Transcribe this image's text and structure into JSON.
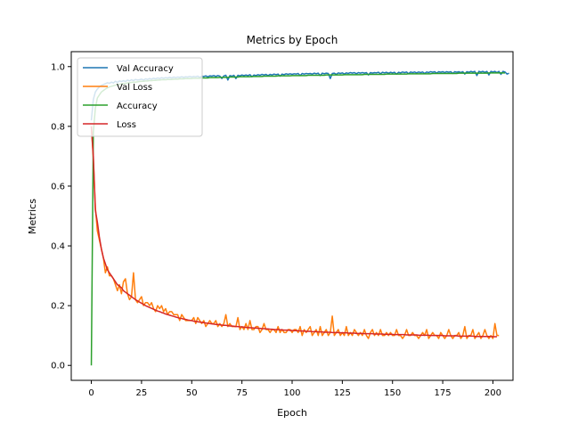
{
  "chart_data": {
    "type": "line",
    "title": "Metrics by Epoch",
    "xlabel": "Epoch",
    "ylabel": "Metrics",
    "xlim": [
      -10,
      210
    ],
    "ylim": [
      -0.05,
      1.05
    ],
    "xticks": [
      0,
      25,
      50,
      75,
      100,
      125,
      150,
      175,
      200
    ],
    "yticks": [
      0.0,
      0.2,
      0.4,
      0.6,
      0.8,
      1.0
    ],
    "grid": false,
    "legend_position": "top-left",
    "x_start": 0,
    "x_step": 1,
    "series": [
      {
        "name": "Val Accuracy",
        "color": "#1f77b4",
        "values": [
          0.82,
          0.89,
          0.915,
          0.925,
          0.932,
          0.937,
          0.94,
          0.943,
          0.946,
          0.944,
          0.948,
          0.945,
          0.951,
          0.947,
          0.952,
          0.95,
          0.953,
          0.95,
          0.955,
          0.952,
          0.956,
          0.953,
          0.957,
          0.955,
          0.956,
          0.958,
          0.955,
          0.959,
          0.957,
          0.96,
          0.958,
          0.961,
          0.959,
          0.962,
          0.96,
          0.963,
          0.961,
          0.963,
          0.962,
          0.964,
          0.962,
          0.965,
          0.963,
          0.965,
          0.964,
          0.966,
          0.964,
          0.966,
          0.965,
          0.967,
          0.965,
          0.967,
          0.966,
          0.968,
          0.964,
          0.968,
          0.967,
          0.969,
          0.966,
          0.969,
          0.968,
          0.97,
          0.967,
          0.97,
          0.968,
          0.96,
          0.969,
          0.971,
          0.955,
          0.97,
          0.968,
          0.971,
          0.96,
          0.971,
          0.969,
          0.972,
          0.97,
          0.972,
          0.97,
          0.973,
          0.966,
          0.972,
          0.97,
          0.973,
          0.971,
          0.974,
          0.972,
          0.974,
          0.97,
          0.974,
          0.972,
          0.975,
          0.973,
          0.975,
          0.968,
          0.975,
          0.973,
          0.976,
          0.974,
          0.976,
          0.974,
          0.976,
          0.975,
          0.977,
          0.97,
          0.977,
          0.975,
          0.977,
          0.976,
          0.977,
          0.975,
          0.978,
          0.976,
          0.978,
          0.97,
          0.978,
          0.976,
          0.978,
          0.977,
          0.96,
          0.977,
          0.978,
          0.974,
          0.979,
          0.977,
          0.979,
          0.975,
          0.979,
          0.977,
          0.98,
          0.978,
          0.98,
          0.976,
          0.98,
          0.978,
          0.98,
          0.978,
          0.98,
          0.972,
          0.98,
          0.978,
          0.98,
          0.979,
          0.981,
          0.976,
          0.981,
          0.979,
          0.981,
          0.978,
          0.981,
          0.979,
          0.981,
          0.975,
          0.981,
          0.979,
          0.982,
          0.98,
          0.982,
          0.976,
          0.982,
          0.98,
          0.982,
          0.979,
          0.982,
          0.98,
          0.982,
          0.977,
          0.982,
          0.98,
          0.983,
          0.981,
          0.983,
          0.978,
          0.983,
          0.981,
          0.983,
          0.98,
          0.983,
          0.981,
          0.983,
          0.977,
          0.983,
          0.981,
          0.983,
          0.98,
          0.983,
          0.975,
          0.983,
          0.981,
          0.984,
          0.982,
          0.984,
          0.97,
          0.984,
          0.982,
          0.984,
          0.981,
          0.984,
          0.972,
          0.984,
          0.982,
          0.984,
          0.98,
          0.984,
          0.974,
          0.984,
          0.982,
          0.975,
          0.978
        ]
      },
      {
        "name": "Val Loss",
        "color": "#ff7f0e",
        "values": [
          0.8,
          0.69,
          0.53,
          0.45,
          0.42,
          0.39,
          0.36,
          0.31,
          0.33,
          0.3,
          0.3,
          0.29,
          0.27,
          0.25,
          0.27,
          0.24,
          0.28,
          0.29,
          0.24,
          0.22,
          0.23,
          0.31,
          0.22,
          0.21,
          0.22,
          0.23,
          0.2,
          0.21,
          0.21,
          0.2,
          0.21,
          0.19,
          0.18,
          0.2,
          0.19,
          0.2,
          0.18,
          0.19,
          0.17,
          0.18,
          0.18,
          0.17,
          0.17,
          0.17,
          0.15,
          0.17,
          0.16,
          0.15,
          0.15,
          0.15,
          0.15,
          0.16,
          0.14,
          0.16,
          0.15,
          0.14,
          0.15,
          0.13,
          0.14,
          0.15,
          0.14,
          0.14,
          0.15,
          0.13,
          0.14,
          0.13,
          0.14,
          0.17,
          0.13,
          0.14,
          0.13,
          0.13,
          0.13,
          0.16,
          0.12,
          0.13,
          0.12,
          0.14,
          0.12,
          0.15,
          0.12,
          0.12,
          0.13,
          0.13,
          0.11,
          0.12,
          0.14,
          0.12,
          0.12,
          0.11,
          0.12,
          0.12,
          0.11,
          0.13,
          0.11,
          0.12,
          0.11,
          0.11,
          0.12,
          0.12,
          0.11,
          0.12,
          0.12,
          0.11,
          0.13,
          0.1,
          0.12,
          0.11,
          0.12,
          0.13,
          0.1,
          0.11,
          0.12,
          0.1,
          0.13,
          0.1,
          0.11,
          0.12,
          0.1,
          0.11,
          0.165,
          0.1,
          0.11,
          0.12,
          0.1,
          0.11,
          0.1,
          0.13,
          0.1,
          0.11,
          0.1,
          0.12,
          0.11,
          0.1,
          0.11,
          0.1,
          0.12,
          0.1,
          0.09,
          0.11,
          0.12,
          0.1,
          0.11,
          0.1,
          0.12,
          0.1,
          0.1,
          0.11,
          0.1,
          0.11,
          0.1,
          0.1,
          0.12,
          0.1,
          0.1,
          0.09,
          0.1,
          0.12,
          0.1,
          0.1,
          0.11,
          0.1,
          0.1,
          0.09,
          0.1,
          0.11,
          0.1,
          0.12,
          0.09,
          0.1,
          0.11,
          0.1,
          0.1,
          0.09,
          0.11,
          0.1,
          0.09,
          0.1,
          0.12,
          0.1,
          0.09,
          0.1,
          0.1,
          0.11,
          0.09,
          0.1,
          0.13,
          0.09,
          0.1,
          0.1,
          0.12,
          0.09,
          0.1,
          0.11,
          0.09,
          0.1,
          0.12,
          0.1,
          0.09,
          0.1,
          0.09,
          0.14,
          0.1,
          0.1
        ]
      },
      {
        "name": "Accuracy",
        "color": "#2ca02c",
        "values": [
          0.0,
          0.78,
          0.86,
          0.895,
          0.905,
          0.915,
          0.92,
          0.925,
          0.929,
          0.932,
          0.934,
          0.936,
          0.938,
          0.939,
          0.941,
          0.942,
          0.943,
          0.944,
          0.945,
          0.946,
          0.947,
          0.948,
          0.948,
          0.949,
          0.95,
          0.951,
          0.951,
          0.952,
          0.952,
          0.953,
          0.953,
          0.954,
          0.954,
          0.955,
          0.955,
          0.956,
          0.956,
          0.956,
          0.957,
          0.957,
          0.957,
          0.958,
          0.958,
          0.958,
          0.959,
          0.959,
          0.959,
          0.96,
          0.96,
          0.96,
          0.96,
          0.961,
          0.961,
          0.961,
          0.961,
          0.962,
          0.962,
          0.962,
          0.962,
          0.963,
          0.963,
          0.963,
          0.963,
          0.963,
          0.964,
          0.964,
          0.964,
          0.964,
          0.964,
          0.965,
          0.965,
          0.965,
          0.965,
          0.965,
          0.966,
          0.966,
          0.966,
          0.966,
          0.966,
          0.966,
          0.967,
          0.967,
          0.967,
          0.967,
          0.967,
          0.967,
          0.968,
          0.968,
          0.968,
          0.968,
          0.968,
          0.968,
          0.968,
          0.969,
          0.969,
          0.969,
          0.969,
          0.969,
          0.969,
          0.969,
          0.97,
          0.97,
          0.97,
          0.97,
          0.97,
          0.97,
          0.97,
          0.97,
          0.971,
          0.971,
          0.971,
          0.971,
          0.971,
          0.971,
          0.971,
          0.971,
          0.971,
          0.972,
          0.972,
          0.972,
          0.972,
          0.972,
          0.972,
          0.972,
          0.972,
          0.972,
          0.973,
          0.973,
          0.973,
          0.973,
          0.973,
          0.973,
          0.973,
          0.973,
          0.973,
          0.973,
          0.974,
          0.974,
          0.974,
          0.974,
          0.974,
          0.974,
          0.974,
          0.974,
          0.974,
          0.974,
          0.974,
          0.975,
          0.975,
          0.975,
          0.975,
          0.975,
          0.975,
          0.975,
          0.975,
          0.975,
          0.975,
          0.975,
          0.976,
          0.976,
          0.976,
          0.976,
          0.976,
          0.976,
          0.976,
          0.976,
          0.976,
          0.976,
          0.976,
          0.976,
          0.977,
          0.977,
          0.977,
          0.977,
          0.977,
          0.977,
          0.977,
          0.977,
          0.977,
          0.977,
          0.977,
          0.977,
          0.977,
          0.978,
          0.978,
          0.978,
          0.978,
          0.978,
          0.978,
          0.978,
          0.978,
          0.978,
          0.978,
          0.978,
          0.978,
          0.978,
          0.978,
          0.978,
          0.979,
          0.979,
          0.979,
          0.979,
          0.979,
          0.979,
          0.979,
          0.979,
          0.979
        ]
      },
      {
        "name": "Loss",
        "color": "#d62728",
        "values": [
          0.8,
          0.7,
          0.52,
          0.48,
          0.43,
          0.39,
          0.36,
          0.34,
          0.32,
          0.31,
          0.3,
          0.29,
          0.28,
          0.27,
          0.265,
          0.26,
          0.25,
          0.245,
          0.24,
          0.235,
          0.23,
          0.225,
          0.22,
          0.216,
          0.212,
          0.208,
          0.204,
          0.2,
          0.197,
          0.194,
          0.191,
          0.188,
          0.185,
          0.182,
          0.18,
          0.177,
          0.175,
          0.172,
          0.17,
          0.168,
          0.166,
          0.164,
          0.162,
          0.16,
          0.158,
          0.157,
          0.155,
          0.154,
          0.152,
          0.151,
          0.15,
          0.148,
          0.147,
          0.146,
          0.145,
          0.144,
          0.143,
          0.142,
          0.141,
          0.14,
          0.139,
          0.138,
          0.137,
          0.137,
          0.136,
          0.135,
          0.134,
          0.134,
          0.133,
          0.132,
          0.132,
          0.131,
          0.13,
          0.13,
          0.129,
          0.129,
          0.128,
          0.127,
          0.127,
          0.126,
          0.126,
          0.125,
          0.125,
          0.124,
          0.124,
          0.123,
          0.123,
          0.122,
          0.122,
          0.121,
          0.121,
          0.12,
          0.12,
          0.12,
          0.119,
          0.119,
          0.118,
          0.118,
          0.118,
          0.117,
          0.117,
          0.116,
          0.116,
          0.116,
          0.115,
          0.115,
          0.115,
          0.114,
          0.114,
          0.114,
          0.113,
          0.113,
          0.113,
          0.112,
          0.112,
          0.112,
          0.111,
          0.111,
          0.111,
          0.111,
          0.11,
          0.11,
          0.11,
          0.11,
          0.109,
          0.109,
          0.109,
          0.109,
          0.108,
          0.108,
          0.108,
          0.108,
          0.107,
          0.107,
          0.107,
          0.107,
          0.106,
          0.106,
          0.106,
          0.106,
          0.106,
          0.105,
          0.105,
          0.105,
          0.105,
          0.105,
          0.104,
          0.104,
          0.104,
          0.104,
          0.104,
          0.103,
          0.103,
          0.103,
          0.103,
          0.103,
          0.103,
          0.102,
          0.102,
          0.102,
          0.102,
          0.102,
          0.102,
          0.101,
          0.101,
          0.101,
          0.101,
          0.101,
          0.101,
          0.1,
          0.1,
          0.1,
          0.1,
          0.1,
          0.1,
          0.1,
          0.099,
          0.099,
          0.099,
          0.099,
          0.099,
          0.099,
          0.099,
          0.098,
          0.098,
          0.098,
          0.098,
          0.098,
          0.098,
          0.098,
          0.098,
          0.097,
          0.097,
          0.097,
          0.097,
          0.097,
          0.097,
          0.097,
          0.097,
          0.097,
          0.096,
          0.096,
          0.096
        ]
      }
    ]
  }
}
